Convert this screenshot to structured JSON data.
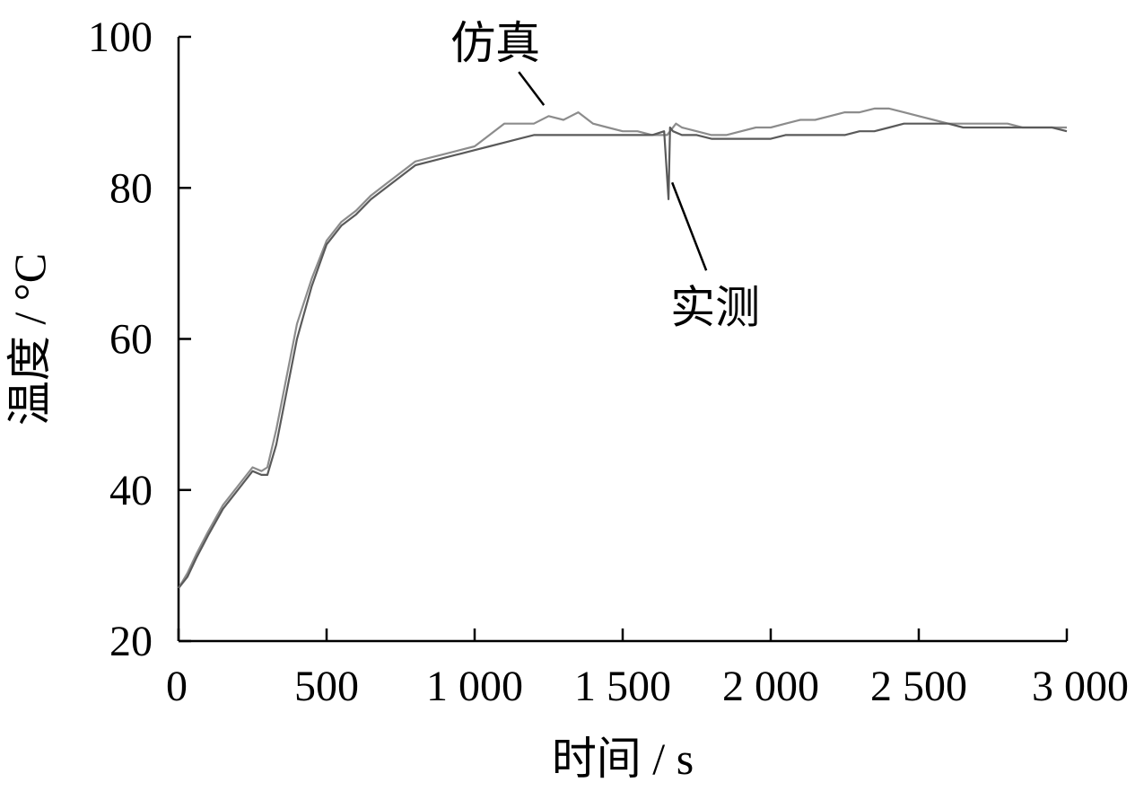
{
  "chart_data": {
    "type": "line",
    "title": "",
    "xlabel": "时间 / s",
    "ylabel": "温度 / °C",
    "xlim": [
      0,
      3000
    ],
    "ylim": [
      20,
      100
    ],
    "xticks": [
      0,
      500,
      1000,
      1500,
      2000,
      2500,
      3000
    ],
    "xtick_labels": [
      "0",
      "500",
      "1 000",
      "1 500",
      "2 000",
      "2 500",
      "3 000"
    ],
    "yticks": [
      20,
      40,
      60,
      80,
      100
    ],
    "ytick_labels": [
      "20",
      "40",
      "60",
      "80",
      "100"
    ],
    "grid": false,
    "legend": "none",
    "series": [
      {
        "name": "仿真",
        "color": "#8c8c8c",
        "x": [
          0,
          30,
          60,
          100,
          150,
          200,
          250,
          280,
          300,
          330,
          360,
          400,
          450,
          500,
          550,
          600,
          650,
          700,
          750,
          800,
          850,
          900,
          950,
          1000,
          1050,
          1100,
          1150,
          1200,
          1250,
          1300,
          1350,
          1400,
          1450,
          1500,
          1550,
          1600,
          1650,
          1680,
          1700,
          1750,
          1800,
          1850,
          1900,
          1950,
          2000,
          2050,
          2100,
          2150,
          2200,
          2250,
          2300,
          2350,
          2400,
          2450,
          2500,
          2550,
          2600,
          2650,
          2700,
          2750,
          2800,
          2850,
          2900,
          2950,
          3000
        ],
        "y": [
          27,
          29,
          31.5,
          34.5,
          38,
          40.5,
          43,
          42.5,
          43,
          48,
          54,
          62,
          68,
          73,
          75.5,
          77,
          79,
          80.5,
          82,
          83.5,
          84,
          84.5,
          85,
          85.5,
          87,
          88.5,
          88.5,
          88.5,
          89.5,
          89,
          90,
          88.5,
          88,
          87.5,
          87.5,
          87,
          87,
          88.5,
          88,
          87.5,
          87,
          87,
          87.5,
          88,
          88,
          88.5,
          89,
          89,
          89.5,
          90,
          90,
          90.5,
          90.5,
          90,
          89.5,
          89,
          88.5,
          88.5,
          88.5,
          88.5,
          88.5,
          88,
          88,
          88,
          88
        ]
      },
      {
        "name": "实测",
        "color": "#5a5a5a",
        "x": [
          0,
          30,
          60,
          100,
          150,
          200,
          250,
          280,
          300,
          330,
          360,
          400,
          450,
          500,
          550,
          600,
          650,
          700,
          750,
          800,
          850,
          900,
          950,
          1000,
          1050,
          1100,
          1150,
          1200,
          1250,
          1300,
          1350,
          1400,
          1450,
          1500,
          1550,
          1600,
          1640,
          1655,
          1660,
          1670,
          1700,
          1750,
          1800,
          1850,
          1900,
          1950,
          2000,
          2050,
          2100,
          2150,
          2200,
          2250,
          2300,
          2350,
          2400,
          2450,
          2500,
          2550,
          2600,
          2650,
          2700,
          2750,
          2800,
          2850,
          2900,
          2950,
          3000
        ],
        "y": [
          27,
          28.5,
          31,
          34,
          37.5,
          40,
          42.5,
          42,
          42,
          46,
          52,
          60,
          67,
          72.5,
          75,
          76.5,
          78.5,
          80,
          81.5,
          83,
          83.5,
          84,
          84.5,
          85,
          85.5,
          86,
          86.5,
          87,
          87,
          87,
          87,
          87,
          87,
          87,
          87,
          87,
          87.5,
          78.5,
          88,
          87.5,
          87,
          87,
          86.5,
          86.5,
          86.5,
          86.5,
          86.5,
          87,
          87,
          87,
          87,
          87,
          87.5,
          87.5,
          88,
          88.5,
          88.5,
          88.5,
          88.5,
          88,
          88,
          88,
          88,
          88,
          88,
          88,
          87.5
        ]
      }
    ],
    "annotations": [
      {
        "text": "仿真",
        "series": "仿真",
        "x": 1240,
        "y": 90
      },
      {
        "text": "实测",
        "series": "实测",
        "x": 1655,
        "y": 80
      }
    ]
  }
}
